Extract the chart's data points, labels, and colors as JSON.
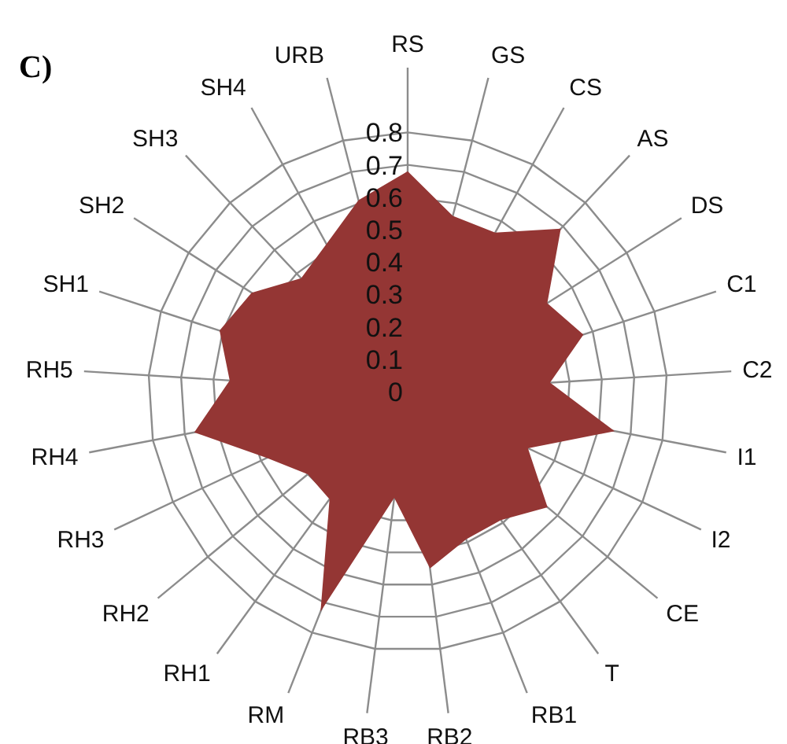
{
  "chart_data": {
    "type": "radar",
    "title": "C)",
    "categories": [
      "RS",
      "GS",
      "CS",
      "AS",
      "DS",
      "C1",
      "C2",
      "I1",
      "I2",
      "CE",
      "T",
      "RB1",
      "RB2",
      "RB3",
      "RM",
      "RH1",
      "RH2",
      "RH3",
      "RH4",
      "RH5",
      "SH1",
      "SH2",
      "SH3",
      "SH4",
      "URB"
    ],
    "series": [
      {
        "color": "#943634",
        "values": [
          0.68,
          0.56,
          0.56,
          0.69,
          0.51,
          0.57,
          0.44,
          0.65,
          0.41,
          0.56,
          0.49,
          0.49,
          0.55,
          0.33,
          0.73,
          0.41,
          0.4,
          0.48,
          0.67,
          0.55,
          0.61,
          0.57,
          0.48,
          0.52,
          0.61
        ]
      }
    ],
    "ylim": [
      0,
      0.8
    ],
    "yticks": [
      0,
      0.1,
      0.2,
      0.3,
      0.4,
      0.5,
      0.6,
      0.7,
      0.8
    ],
    "grid": true,
    "legend": false
  }
}
